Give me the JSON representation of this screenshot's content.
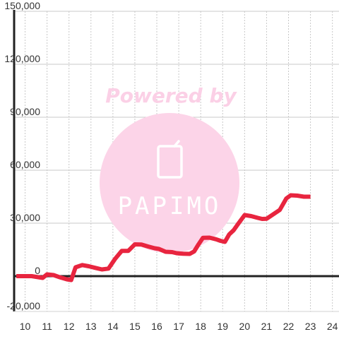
{
  "watermark": {
    "text": "Powered by",
    "brand": "PAPIMO",
    "color": "#fcd4e8",
    "text_color": "#fbd0e6"
  },
  "chart_data": {
    "type": "line",
    "title": "",
    "xlabel": "",
    "ylabel": "",
    "xlim": [
      9.5,
      24.3
    ],
    "ylim": [
      -20000,
      150000
    ],
    "xticks": [
      10,
      11,
      12,
      13,
      14,
      15,
      16,
      17,
      18,
      19,
      20,
      21,
      22,
      23,
      24
    ],
    "yticks": [
      -20000,
      0,
      30000,
      60000,
      90000,
      120000,
      150000
    ],
    "ytick_labels": [
      "-20,000",
      "0",
      "30,000",
      "60,000",
      "90,000",
      "120,000",
      "150,000"
    ],
    "grid": true,
    "series": [
      {
        "color": "#e8253f",
        "x": [
          9.6,
          10.0,
          10.3,
          10.6,
          10.8,
          11.0,
          11.3,
          11.6,
          11.9,
          12.1,
          12.3,
          12.6,
          12.9,
          13.2,
          13.5,
          13.8,
          14.1,
          14.4,
          14.7,
          15.0,
          15.3,
          15.6,
          15.9,
          16.1,
          16.4,
          16.7,
          16.9,
          17.2,
          17.5,
          17.7,
          17.9,
          18.1,
          18.4,
          18.7,
          18.9,
          19.1,
          19.3,
          19.5,
          19.7,
          20.0,
          20.3,
          20.6,
          20.8,
          21.0,
          21.3,
          21.6,
          21.9,
          22.1,
          22.4,
          22.7,
          23.0
        ],
        "y": [
          0,
          0,
          0,
          -600,
          -1000,
          1000,
          600,
          -700,
          -1800,
          -2200,
          5000,
          6300,
          5600,
          4700,
          3800,
          4300,
          9800,
          14300,
          14300,
          18000,
          17900,
          16800,
          15800,
          15400,
          13800,
          13600,
          13000,
          12700,
          12600,
          14000,
          18000,
          21700,
          21800,
          20900,
          20000,
          19400,
          23700,
          26000,
          29500,
          34600,
          34000,
          33000,
          32400,
          32500,
          35000,
          37500,
          44000,
          45800,
          45600,
          45000,
          45000
        ]
      }
    ]
  }
}
